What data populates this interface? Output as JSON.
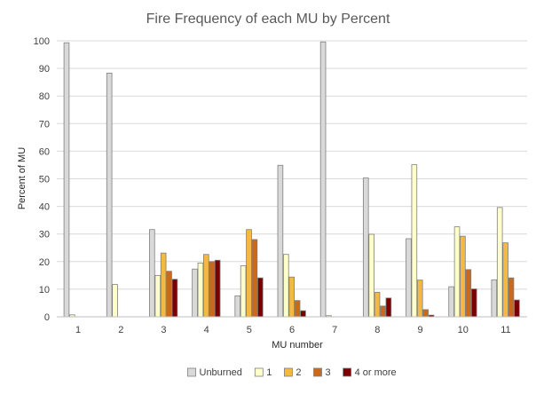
{
  "chart_data": {
    "type": "bar",
    "title": "Fire Frequency of each MU by Percent",
    "xlabel": "MU number",
    "ylabel": "Percent of MU",
    "ylim": [
      0,
      100
    ],
    "yticks": [
      0,
      10,
      20,
      30,
      40,
      50,
      60,
      70,
      80,
      90,
      100
    ],
    "grid": true,
    "legend_position": "bottom",
    "categories": [
      "1",
      "2",
      "3",
      "4",
      "5",
      "6",
      "7",
      "8",
      "9",
      "10",
      "11"
    ],
    "series": [
      {
        "name": "Unburned",
        "color": "#d9d9d9",
        "values": [
          99.3,
          88.3,
          31.6,
          17.3,
          7.6,
          54.9,
          99.6,
          50.3,
          28.3,
          10.9,
          13.4
        ]
      },
      {
        "name": "1",
        "color": "#ffffcc",
        "values": [
          0.7,
          11.7,
          15.0,
          19.5,
          18.5,
          22.6,
          0.4,
          29.9,
          55.1,
          32.6,
          39.6
        ]
      },
      {
        "name": "2",
        "color": "#f4b942",
        "values": [
          0,
          0,
          23.1,
          22.6,
          31.6,
          14.4,
          0,
          8.9,
          13.3,
          29.2,
          26.8
        ]
      },
      {
        "name": "3",
        "color": "#c8691c",
        "values": [
          0,
          0,
          16.5,
          20.0,
          28.0,
          5.9,
          0,
          3.9,
          2.6,
          17.1,
          14.1
        ]
      },
      {
        "name": "4 or more",
        "color": "#7a0000",
        "values": [
          0,
          0,
          13.6,
          20.5,
          14.1,
          2.2,
          0,
          6.8,
          0.6,
          10.1,
          6.1
        ]
      }
    ]
  }
}
